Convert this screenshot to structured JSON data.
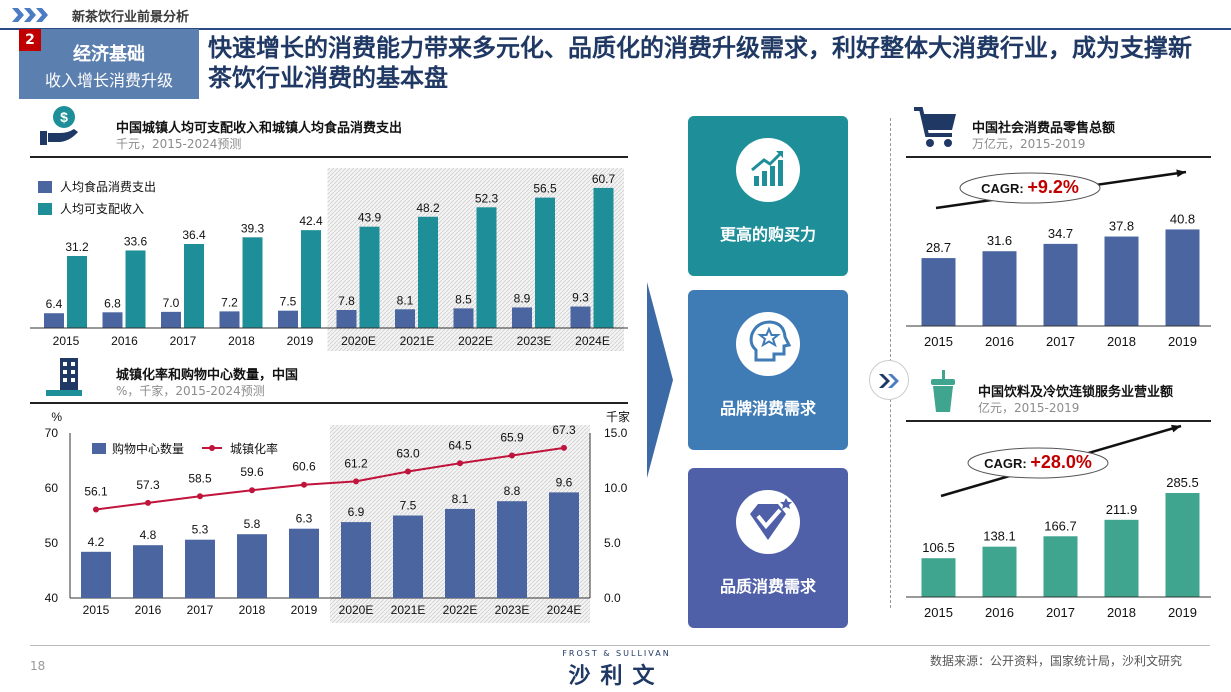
{
  "header": {
    "section_title": "新茶饮行业前景分析",
    "section_number": "2",
    "section_name": "经济基础",
    "section_subtitle": "收入增长消费升级",
    "headline": "快速增长的消费能力带来多元化、品质化的消费升级需求，利好整体大消费行业，成为支撑新茶饮行业消费的基本盘"
  },
  "pillars": [
    {
      "label": "更高的购买力",
      "icon": "chart-growth-icon",
      "color": "#1e8f99"
    },
    {
      "label": "品牌消费需求",
      "icon": "head-star-icon",
      "color": "#3f7bb5"
    },
    {
      "label": "品质消费需求",
      "icon": "diamond-check-icon",
      "color": "#4f5fa8"
    }
  ],
  "footer": {
    "page_number": "18",
    "logo_top": "FROST & SULLIVAN",
    "logo_main": "沙利文",
    "source": "数据来源：公开资料，国家统计局，沙利文研究"
  },
  "colors": {
    "navy": "#4a65a0",
    "teal": "#1e8f99",
    "green": "#3fa58f",
    "red": "#c0143c"
  },
  "chart_data": [
    {
      "id": "income",
      "type": "bar",
      "title": "中国城镇人均可支配收入和城镇人均食品消费支出",
      "subtitle": "千元，2015-2024预测",
      "categories": [
        "2015",
        "2016",
        "2017",
        "2018",
        "2019",
        "2020E",
        "2021E",
        "2022E",
        "2023E",
        "2024E"
      ],
      "series": [
        {
          "name": "人均食品消费支出",
          "values": [
            6.4,
            6.8,
            7.0,
            7.2,
            7.5,
            7.8,
            8.1,
            8.5,
            8.9,
            9.3
          ],
          "color": "#4a65a0"
        },
        {
          "name": "人均可支配收入",
          "values": [
            31.2,
            33.6,
            36.4,
            39.3,
            42.4,
            43.9,
            48.2,
            52.3,
            56.5,
            60.7
          ],
          "color": "#1e8f99"
        }
      ],
      "ylim": [
        0,
        65
      ],
      "forecast_from": "2020E"
    },
    {
      "id": "urban",
      "type": "bar+line",
      "title": "城镇化率和购物中心数量，中国",
      "subtitle": "%，千家，2015-2024预测",
      "categories": [
        "2015",
        "2016",
        "2017",
        "2018",
        "2019",
        "2020E",
        "2021E",
        "2022E",
        "2023E",
        "2024E"
      ],
      "series": [
        {
          "name": "购物中心数量",
          "values": [
            4.2,
            4.8,
            5.3,
            5.8,
            6.3,
            6.9,
            7.5,
            8.1,
            8.8,
            9.6
          ],
          "color": "#4a65a0",
          "axis": "right"
        },
        {
          "name": "城镇化率",
          "values": [
            56.1,
            57.3,
            58.5,
            59.6,
            60.6,
            61.2,
            63.0,
            64.5,
            65.9,
            67.3
          ],
          "color": "#c0143c",
          "axis": "left"
        }
      ],
      "left_axis": {
        "label": "%",
        "ticks": [
          "40",
          "50",
          "60",
          "70"
        ],
        "ylim": [
          40,
          70
        ]
      },
      "right_axis": {
        "label": "千家",
        "ticks": [
          "0.0",
          "5.0",
          "10.0",
          "15.0"
        ],
        "ylim": [
          0,
          15
        ]
      },
      "forecast_from": "2020E"
    },
    {
      "id": "retail",
      "type": "bar",
      "title": "中国社会消费品零售总额",
      "subtitle": "万亿元，2015-2019",
      "categories": [
        "2015",
        "2016",
        "2017",
        "2018",
        "2019"
      ],
      "values": [
        28.7,
        31.6,
        34.7,
        37.8,
        40.8
      ],
      "color": "#4a65a0",
      "ylim": [
        0,
        60
      ],
      "cagr_label": "CAGR: ",
      "cagr_value": "+9.2%"
    },
    {
      "id": "beverage",
      "type": "bar",
      "title": "中国饮料及冷饮连锁服务业营业额",
      "subtitle": "亿元，2015-2019",
      "categories": [
        "2015",
        "2016",
        "2017",
        "2018",
        "2019"
      ],
      "values": [
        106.5,
        138.1,
        166.7,
        211.9,
        285.5
      ],
      "color": "#3fa58f",
      "ylim": [
        0,
        420
      ],
      "cagr_label": "CAGR: ",
      "cagr_value": "+28.0%"
    }
  ]
}
